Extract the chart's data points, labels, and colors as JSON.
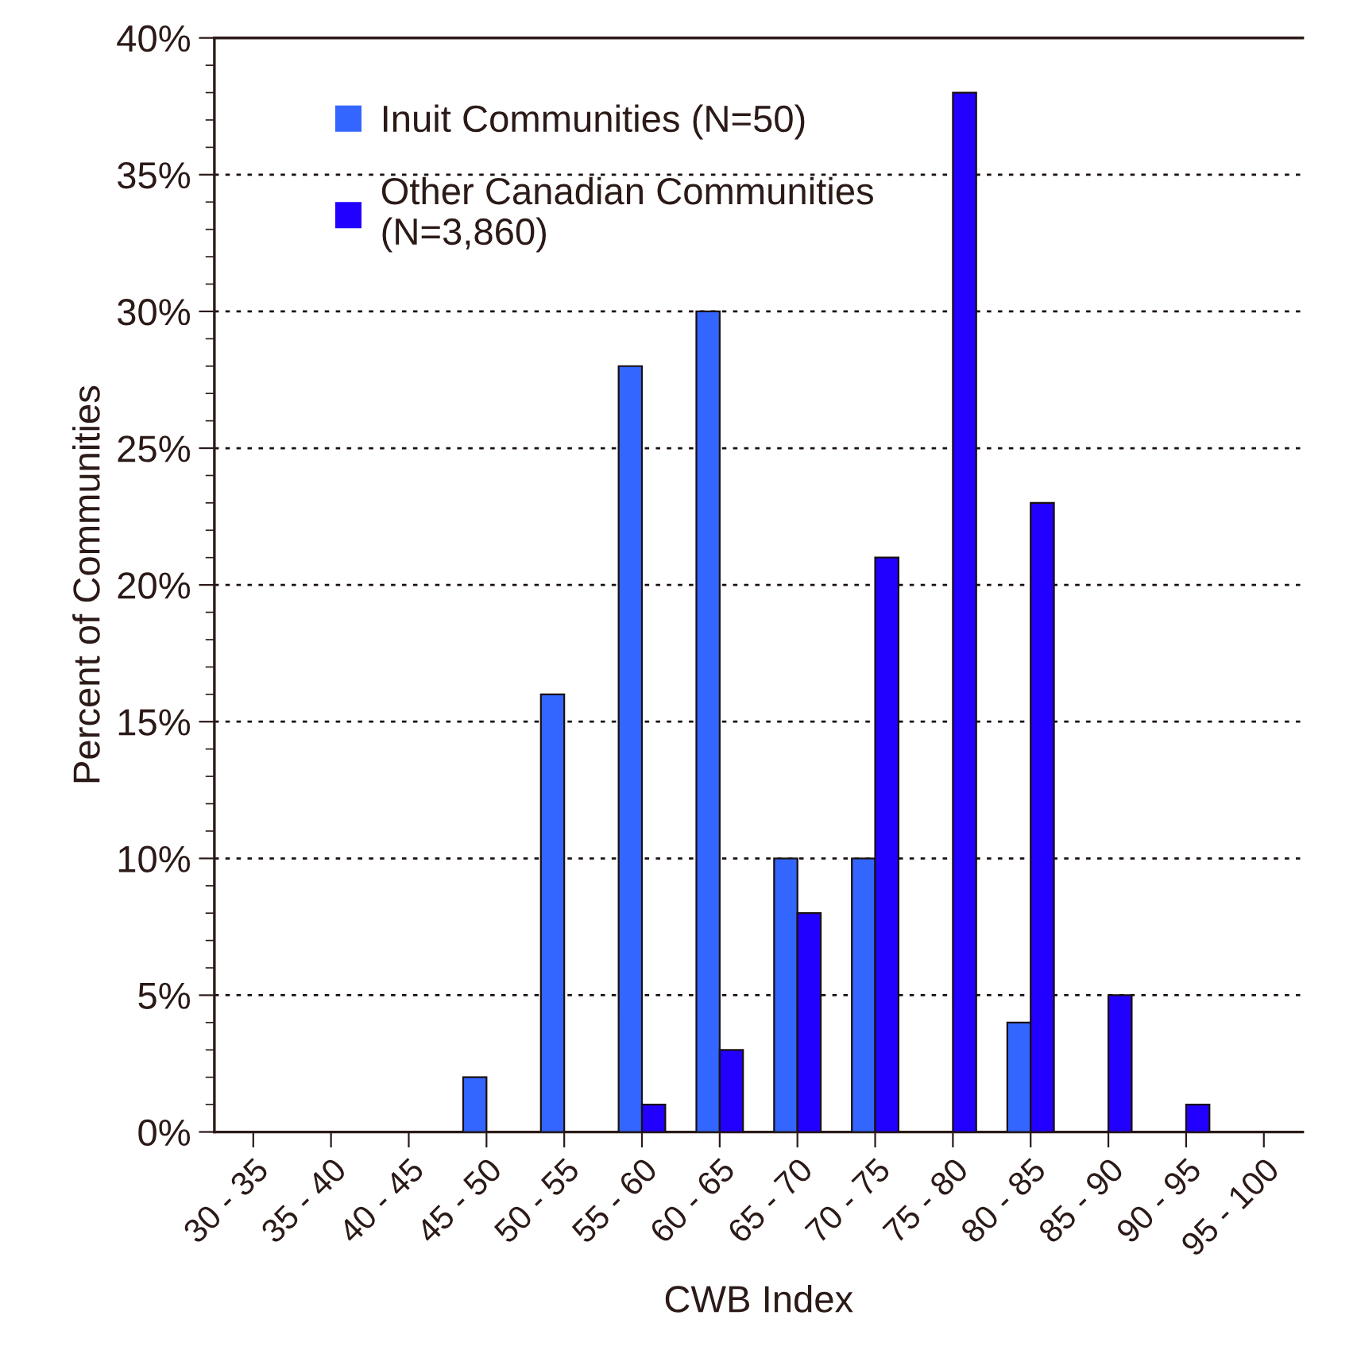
{
  "chart_data": {
    "type": "bar",
    "xlabel": "CWB Index",
    "ylabel": "Percent of Communities",
    "categories": [
      "30 - 35",
      "35 - 40",
      "40 - 45",
      "45 - 50",
      "50 - 55",
      "55 - 60",
      "60 - 65",
      "65 - 70",
      "70 - 75",
      "75 - 80",
      "80 - 85",
      "85 - 90",
      "90 - 95",
      "95 - 100"
    ],
    "series": [
      {
        "name": "Inuit Communities (N=50)",
        "color": "#3366ff",
        "values": [
          0,
          0,
          0,
          2,
          16,
          28,
          30,
          10,
          10,
          0,
          4,
          0,
          0,
          null
        ]
      },
      {
        "name": "Other Canadian Communities\n(N=3,860)",
        "color": "#2200ff",
        "values": [
          0,
          0,
          0,
          0,
          0,
          1,
          3,
          8,
          21,
          38,
          23,
          5,
          1,
          null
        ]
      }
    ],
    "ylim": [
      0,
      40
    ],
    "yticks": [
      {
        "value": 0,
        "label": "0%"
      },
      {
        "value": 5,
        "label": "5%"
      },
      {
        "value": 10,
        "label": "10%"
      },
      {
        "value": 15,
        "label": "15%"
      },
      {
        "value": 20,
        "label": "20%"
      },
      {
        "value": 25,
        "label": "25%"
      },
      {
        "value": 30,
        "label": "30%"
      },
      {
        "value": 35,
        "label": "35%"
      },
      {
        "value": 40,
        "label": "40%"
      }
    ],
    "grid": "y",
    "legend": "top left"
  }
}
